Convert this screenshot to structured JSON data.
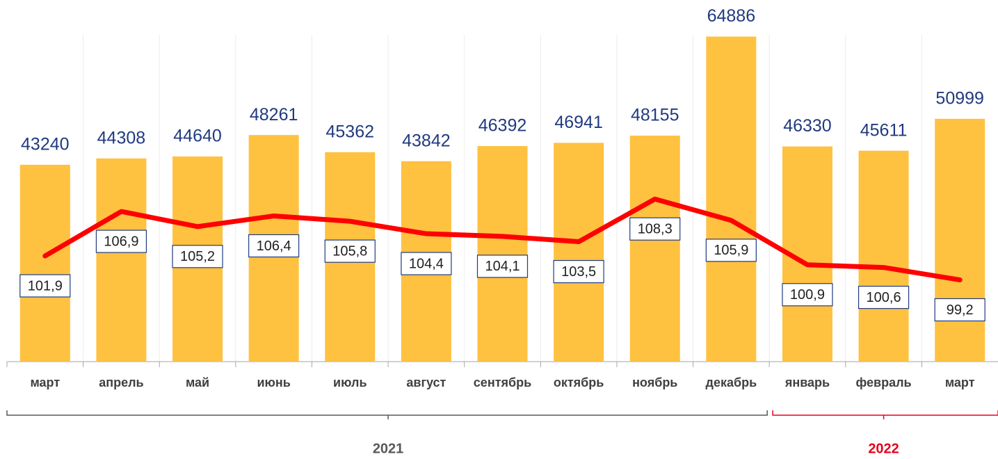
{
  "chart_data": {
    "type": "bar-line",
    "categories": [
      "март",
      "апрель",
      "май",
      "июнь",
      "июль",
      "август",
      "сентябрь",
      "октябрь",
      "ноябрь",
      "декабрь",
      "январь",
      "февраль",
      "март"
    ],
    "series": [
      {
        "type": "bar",
        "color": "#ffc140",
        "values": [
          43240,
          44308,
          44640,
          48261,
          45362,
          43842,
          46392,
          46941,
          48155,
          64886,
          46330,
          45611,
          50999
        ]
      },
      {
        "type": "line",
        "axis": "y2",
        "color": "#ff0000",
        "values": [
          101.9,
          106.9,
          105.2,
          106.4,
          105.8,
          104.4,
          104.1,
          103.5,
          108.3,
          105.9,
          100.9,
          100.6,
          99.2
        ],
        "value_labels": [
          "101,9",
          "106,9",
          "105,2",
          "106,4",
          "105,8",
          "104,4",
          "104,1",
          "103,5",
          "108,3",
          "105,9",
          "100,9",
          "100,6",
          "99,2"
        ]
      }
    ],
    "ylim": [
      10000,
      70000
    ],
    "y2lim": [
      90,
      130
    ],
    "groups": [
      {
        "label": "2021",
        "count": 10,
        "color": "#595959"
      },
      {
        "label": "2022",
        "count": 3,
        "color": "#e8001c"
      }
    ]
  }
}
